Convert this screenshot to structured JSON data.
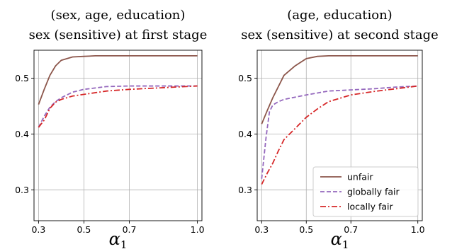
{
  "chart_data": [
    {
      "type": "line",
      "title_lines": [
        "(sex, age, education)",
        "sex (sensitive) at first stage"
      ],
      "xlabel": "α",
      "xlabel_sub": "1",
      "xlim": [
        0.28,
        1.02
      ],
      "ylim": [
        0.245,
        0.55
      ],
      "xticks": [
        0.3,
        0.5,
        0.7,
        1.0
      ],
      "xtick_labels": [
        "0.3",
        "0.5",
        "0.7",
        "1.0"
      ],
      "yticks": [
        0.3,
        0.4,
        0.5
      ],
      "ytick_labels": [
        "0.3",
        "0.4",
        "0.5"
      ],
      "grid": true,
      "legend": null,
      "series": [
        {
          "name": "unfair",
          "color": "#8c564b",
          "dash": "solid",
          "x": [
            0.3,
            0.325,
            0.35,
            0.375,
            0.4,
            0.45,
            0.5,
            0.55,
            0.6,
            0.7,
            0.8,
            0.9,
            1.0
          ],
          "y": [
            0.453,
            0.48,
            0.505,
            0.522,
            0.532,
            0.538,
            0.539,
            0.54,
            0.54,
            0.54,
            0.54,
            0.54,
            0.54
          ]
        },
        {
          "name": "globally fair",
          "color": "#9467bd",
          "dash": "dashed",
          "x": [
            0.3,
            0.325,
            0.35,
            0.375,
            0.4,
            0.45,
            0.5,
            0.6,
            0.7,
            0.8,
            0.9,
            1.0
          ],
          "y": [
            0.412,
            0.432,
            0.448,
            0.458,
            0.465,
            0.475,
            0.48,
            0.485,
            0.486,
            0.486,
            0.486,
            0.486
          ]
        },
        {
          "name": "locally fair",
          "color": "#d62728",
          "dash": "dashdot",
          "x": [
            0.3,
            0.325,
            0.35,
            0.375,
            0.4,
            0.45,
            0.5,
            0.6,
            0.7,
            0.8,
            0.9,
            1.0
          ],
          "y": [
            0.412,
            0.425,
            0.446,
            0.457,
            0.462,
            0.468,
            0.471,
            0.477,
            0.48,
            0.482,
            0.484,
            0.486
          ]
        }
      ]
    },
    {
      "type": "line",
      "title_lines": [
        "(age, education)",
        "sex (sensitive) at second stage"
      ],
      "xlabel": "α",
      "xlabel_sub": "1",
      "xlim": [
        0.28,
        1.02
      ],
      "ylim": [
        0.245,
        0.55
      ],
      "xticks": [
        0.3,
        0.5,
        0.7,
        1.0
      ],
      "xtick_labels": [
        "0.3",
        "0.5",
        "0.7",
        "1.0"
      ],
      "yticks": [
        0.3,
        0.4,
        0.5
      ],
      "ytick_labels": [
        "0.3",
        "0.4",
        "0.5"
      ],
      "grid": true,
      "legend": "lower-right",
      "series": [
        {
          "name": "unfair",
          "color": "#8c564b",
          "dash": "solid",
          "x": [
            0.3,
            0.325,
            0.35,
            0.375,
            0.4,
            0.45,
            0.5,
            0.55,
            0.6,
            0.7,
            0.8,
            0.9,
            1.0
          ],
          "y": [
            0.418,
            0.442,
            0.465,
            0.485,
            0.505,
            0.522,
            0.535,
            0.539,
            0.54,
            0.54,
            0.54,
            0.54,
            0.54
          ]
        },
        {
          "name": "globally fair",
          "color": "#9467bd",
          "dash": "dashed",
          "x": [
            0.3,
            0.32,
            0.335,
            0.35,
            0.375,
            0.4,
            0.45,
            0.5,
            0.6,
            0.7,
            0.8,
            0.9,
            1.0
          ],
          "y": [
            0.32,
            0.395,
            0.44,
            0.452,
            0.458,
            0.462,
            0.466,
            0.47,
            0.477,
            0.479,
            0.481,
            0.484,
            0.486
          ]
        },
        {
          "name": "locally fair",
          "color": "#d62728",
          "dash": "dashdot",
          "x": [
            0.3,
            0.325,
            0.35,
            0.375,
            0.4,
            0.45,
            0.5,
            0.55,
            0.6,
            0.7,
            0.8,
            0.9,
            1.0
          ],
          "y": [
            0.31,
            0.33,
            0.348,
            0.37,
            0.39,
            0.41,
            0.43,
            0.445,
            0.458,
            0.47,
            0.476,
            0.481,
            0.486
          ]
        }
      ]
    }
  ]
}
